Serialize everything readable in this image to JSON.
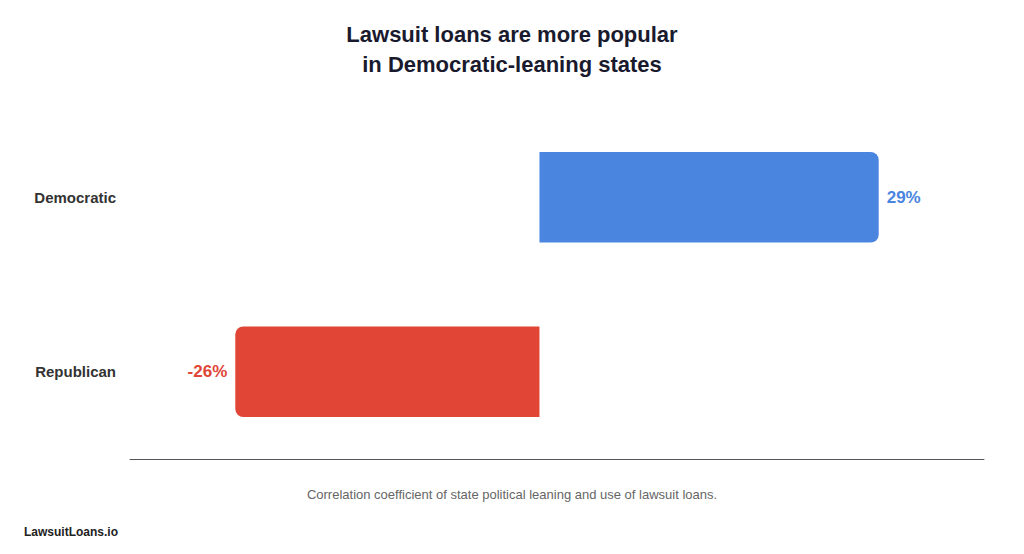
{
  "chart_data": {
    "type": "bar",
    "orientation": "horizontal",
    "title": "Lawsuit loans are more popular\nin Democratic-leaning states",
    "subtitle": "Correlation coefficient of state political leaning and use of lawsuit loans.",
    "annotation": "LawsuitLoans.io",
    "categories": [
      "Democratic",
      "Republican"
    ],
    "values": [
      29,
      -26
    ],
    "value_labels": [
      "29%",
      "-26%"
    ],
    "data_labels": true,
    "colors": [
      "#4a85e0",
      "#e04535"
    ],
    "xlim": [
      -35,
      38
    ],
    "tick_labels": "y",
    "grid": false,
    "legend": false
  }
}
